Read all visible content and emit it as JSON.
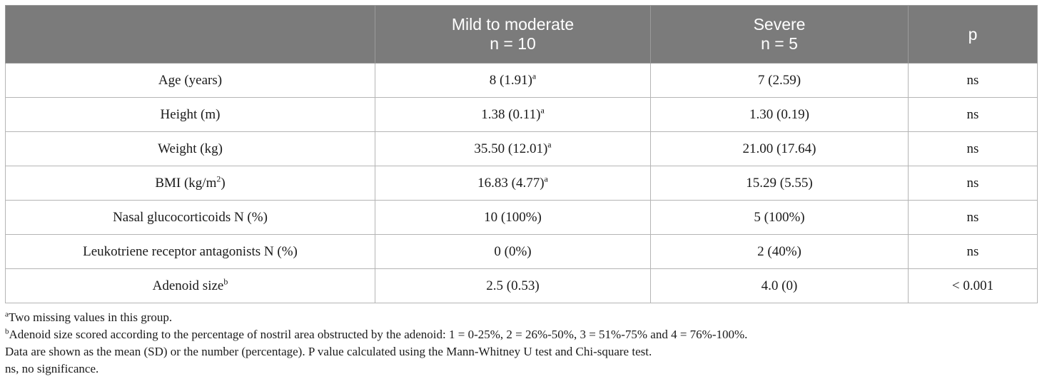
{
  "table": {
    "headers": {
      "label": "",
      "mild": {
        "line1": "Mild to moderate",
        "line2": "n = 10"
      },
      "severe": {
        "line1": "Severe",
        "line2": "n = 5"
      },
      "p": "p"
    },
    "rows": [
      {
        "label": "Age (years)",
        "label_sup": "",
        "label_suffix": "",
        "mild": "8 (1.91)",
        "mild_sup": "a",
        "severe": "7 (2.59)",
        "p": "ns"
      },
      {
        "label": "Height (m)",
        "label_sup": "",
        "label_suffix": "",
        "mild": "1.38 (0.11)",
        "mild_sup": "a",
        "severe": "1.30 (0.19)",
        "p": "ns"
      },
      {
        "label": "Weight (kg)",
        "label_sup": "",
        "label_suffix": "",
        "mild": "35.50 (12.01)",
        "mild_sup": "a",
        "severe": "21.00 (17.64)",
        "p": "ns"
      },
      {
        "label": "BMI (kg/m",
        "label_sup": "2",
        "label_suffix": ")",
        "mild": "16.83 (4.77)",
        "mild_sup": "a",
        "severe": "15.29 (5.55)",
        "p": "ns"
      },
      {
        "label": "Nasal glucocorticoids N (%)",
        "label_sup": "",
        "label_suffix": "",
        "mild": "10 (100%)",
        "mild_sup": "",
        "severe": "5 (100%)",
        "p": "ns"
      },
      {
        "label": "Leukotriene receptor antagonists N (%)",
        "label_sup": "",
        "label_suffix": "",
        "mild": "0 (0%)",
        "mild_sup": "",
        "severe": "2 (40%)",
        "p": "ns"
      },
      {
        "label": "Adenoid size",
        "label_sup": "b",
        "label_suffix": "",
        "mild": "2.5 (0.53)",
        "mild_sup": "",
        "severe": "4.0 (0)",
        "p": "< 0.001"
      }
    ]
  },
  "footnotes": {
    "a": {
      "mark": "a",
      "text": "Two missing values in this group."
    },
    "b": {
      "mark": "b",
      "text": "Adenoid size scored according to the percentage of nostril area obstructed by the adenoid: 1 = 0-25%, 2 = 26%-50%, 3 = 51%-75% and 4 = 76%-100%."
    },
    "data_note": "Data are shown as the mean (SD) or the number (percentage). P value calculated using the Mann-Whitney U test and Chi-square test.",
    "ns_note": "ns, no significance."
  }
}
